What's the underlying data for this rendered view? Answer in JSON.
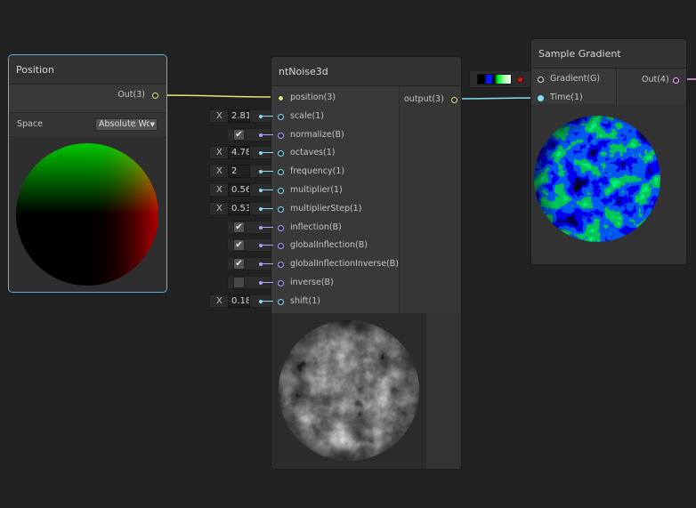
{
  "colors": {
    "vec3_port": "#e3e37c",
    "float_port": "#86dcf0",
    "bool_port": "#a9a5ff",
    "gradient_port": "#e6e6e6",
    "vec4_port": "#f0a6e6",
    "selection_outline": "#5eb2d8"
  },
  "position_node": {
    "title": "Position",
    "out_label": "Out(3)",
    "space_label": "Space",
    "space_value": "Absolute Wo"
  },
  "noise_node": {
    "title": "ntNoise3d",
    "output_label": "output(3)",
    "inputs": [
      {
        "label": "position(3)",
        "kind": "vec3"
      },
      {
        "label": "scale(1)",
        "kind": "float",
        "value": "2.81"
      },
      {
        "label": "normalize(B)",
        "kind": "bool",
        "checked": true
      },
      {
        "label": "octaves(1)",
        "kind": "float",
        "value": "4.78"
      },
      {
        "label": "frequency(1)",
        "kind": "float",
        "value": "2"
      },
      {
        "label": "multiplier(1)",
        "kind": "float",
        "value": "0.56"
      },
      {
        "label": "multiplierStep(1)",
        "kind": "float",
        "value": "0.53"
      },
      {
        "label": "inflection(B)",
        "kind": "bool",
        "checked": true
      },
      {
        "label": "globalInflection(B)",
        "kind": "bool",
        "checked": true
      },
      {
        "label": "globalInflectionInverse(B)",
        "kind": "bool",
        "checked": true
      },
      {
        "label": "inverse(B)",
        "kind": "bool",
        "checked": false
      },
      {
        "label": "shift(1)",
        "kind": "float",
        "value": "0.18"
      }
    ]
  },
  "gradient_node": {
    "title": "Sample Gradient",
    "gradient_label": "Gradient(G)",
    "time_label": "Time(1)",
    "out_label": "Out(4)"
  },
  "field_prefix": "X",
  "check_glyph": "✔"
}
